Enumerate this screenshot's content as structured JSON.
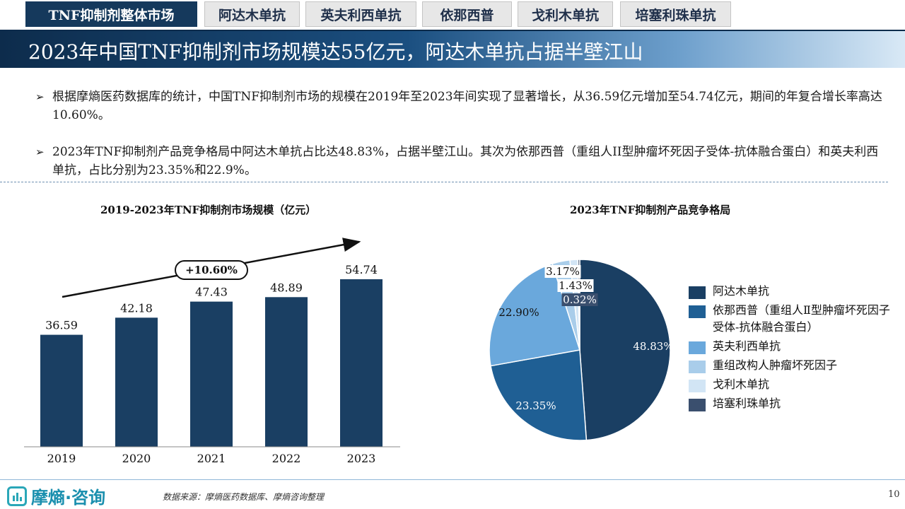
{
  "tabs": [
    {
      "label": "TNF抑制剂整体市场",
      "active": true
    },
    {
      "label": "阿达木单抗",
      "active": false
    },
    {
      "label": "英夫利西单抗",
      "active": false
    },
    {
      "label": "依那西普",
      "active": false
    },
    {
      "label": "戈利木单抗",
      "active": false
    },
    {
      "label": "培塞利珠单抗",
      "active": false
    }
  ],
  "title": "2023年中国TNF抑制剂市场规模达55亿元，阿达木单抗占据半壁江山",
  "bullets": [
    {
      "mark": "➢",
      "text": "根据摩熵医药数据库的统计，中国TNF抑制剂市场的规模在2019年至2023年间实现了显著增长，从36.59亿元增加至54.74亿元，期间的年复合增长率高达10.60%。"
    },
    {
      "mark": "➢",
      "text": "2023年TNF抑制剂产品竞争格局中阿达木单抗占比达48.83%，占据半壁江山。其次为依那西普（重组人II型肿瘤坏死因子受体-抗体融合蛋白）和英夫利西单抗，占比分别为23.35%和22.9%。"
    }
  ],
  "chart_data": [
    {
      "type": "bar",
      "title": "2019-2023年TNF抑制剂市场规模（亿元）",
      "categories": [
        "2019",
        "2020",
        "2021",
        "2022",
        "2023"
      ],
      "values": [
        36.59,
        42.18,
        47.43,
        48.89,
        54.74
      ],
      "value_labels": [
        "36.59",
        "42.18",
        "47.43",
        "48.89",
        "54.74"
      ],
      "annotation": "+10.60%",
      "ylim": [
        0,
        70
      ],
      "color": "#1a3f63"
    },
    {
      "type": "pie",
      "title": "2023年TNF抑制剂产品竞争格局",
      "slices": [
        {
          "name": "阿达木单抗",
          "value": 48.83,
          "label": "48.83%",
          "color": "#1a3f63"
        },
        {
          "name": "依那西普（重组人Ⅱ型肿瘤坏死因子受体-抗体融合蛋白）",
          "value": 23.35,
          "label": "23.35%",
          "color": "#1f5f94"
        },
        {
          "name": "英夫利西单抗",
          "value": 22.9,
          "label": "22.90%",
          "color": "#6aa8dc"
        },
        {
          "name": "重组改构人肿瘤坏死因子",
          "value": 3.17,
          "label": "3.17%",
          "color": "#a9cdea"
        },
        {
          "name": "戈利木单抗",
          "value": 1.43,
          "label": "1.43%",
          "color": "#d2e5f5"
        },
        {
          "name": "培塞利珠单抗",
          "value": 0.32,
          "label": "0.32%",
          "color": "#3a4f6e"
        }
      ]
    }
  ],
  "footer": {
    "logo_text": "摩熵·咨询",
    "source": "数据来源：摩熵医药数据库、摩熵咨询整理",
    "page_number": "10"
  }
}
